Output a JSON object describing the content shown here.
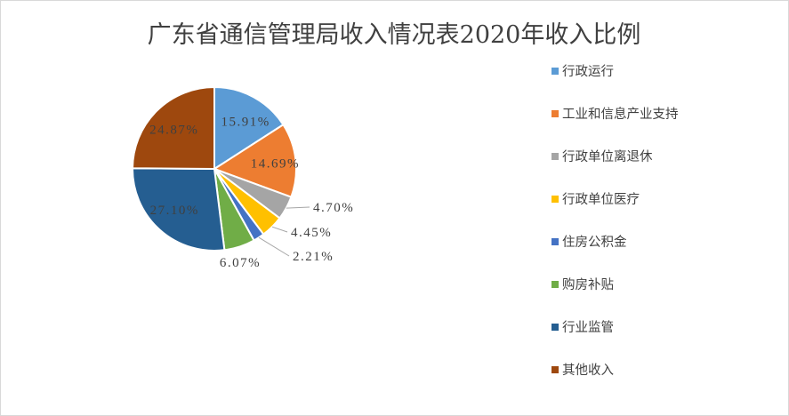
{
  "chart_data": {
    "type": "pie",
    "title": "广东省通信管理局收入情况表2020年收入比例",
    "categories": [
      "行政运行",
      "工业和信息产业支持",
      "行政单位离退休",
      "行政单位医疗",
      "住房公积金",
      "购房补贴",
      "行业监管",
      "其他收入"
    ],
    "values": [
      15.91,
      14.69,
      4.7,
      4.45,
      2.21,
      6.07,
      27.1,
      24.87
    ],
    "labels": [
      "15.91%",
      "14.69%",
      "4.70%",
      "4.45%",
      "2.21%",
      "6.07%",
      "27.10%",
      "24.87%"
    ],
    "colors": [
      "#5b9bd5",
      "#ed7d31",
      "#a5a5a5",
      "#ffc000",
      "#4472c4",
      "#70ad47",
      "#255e91",
      "#9e480e"
    ],
    "legend_position": "right"
  }
}
